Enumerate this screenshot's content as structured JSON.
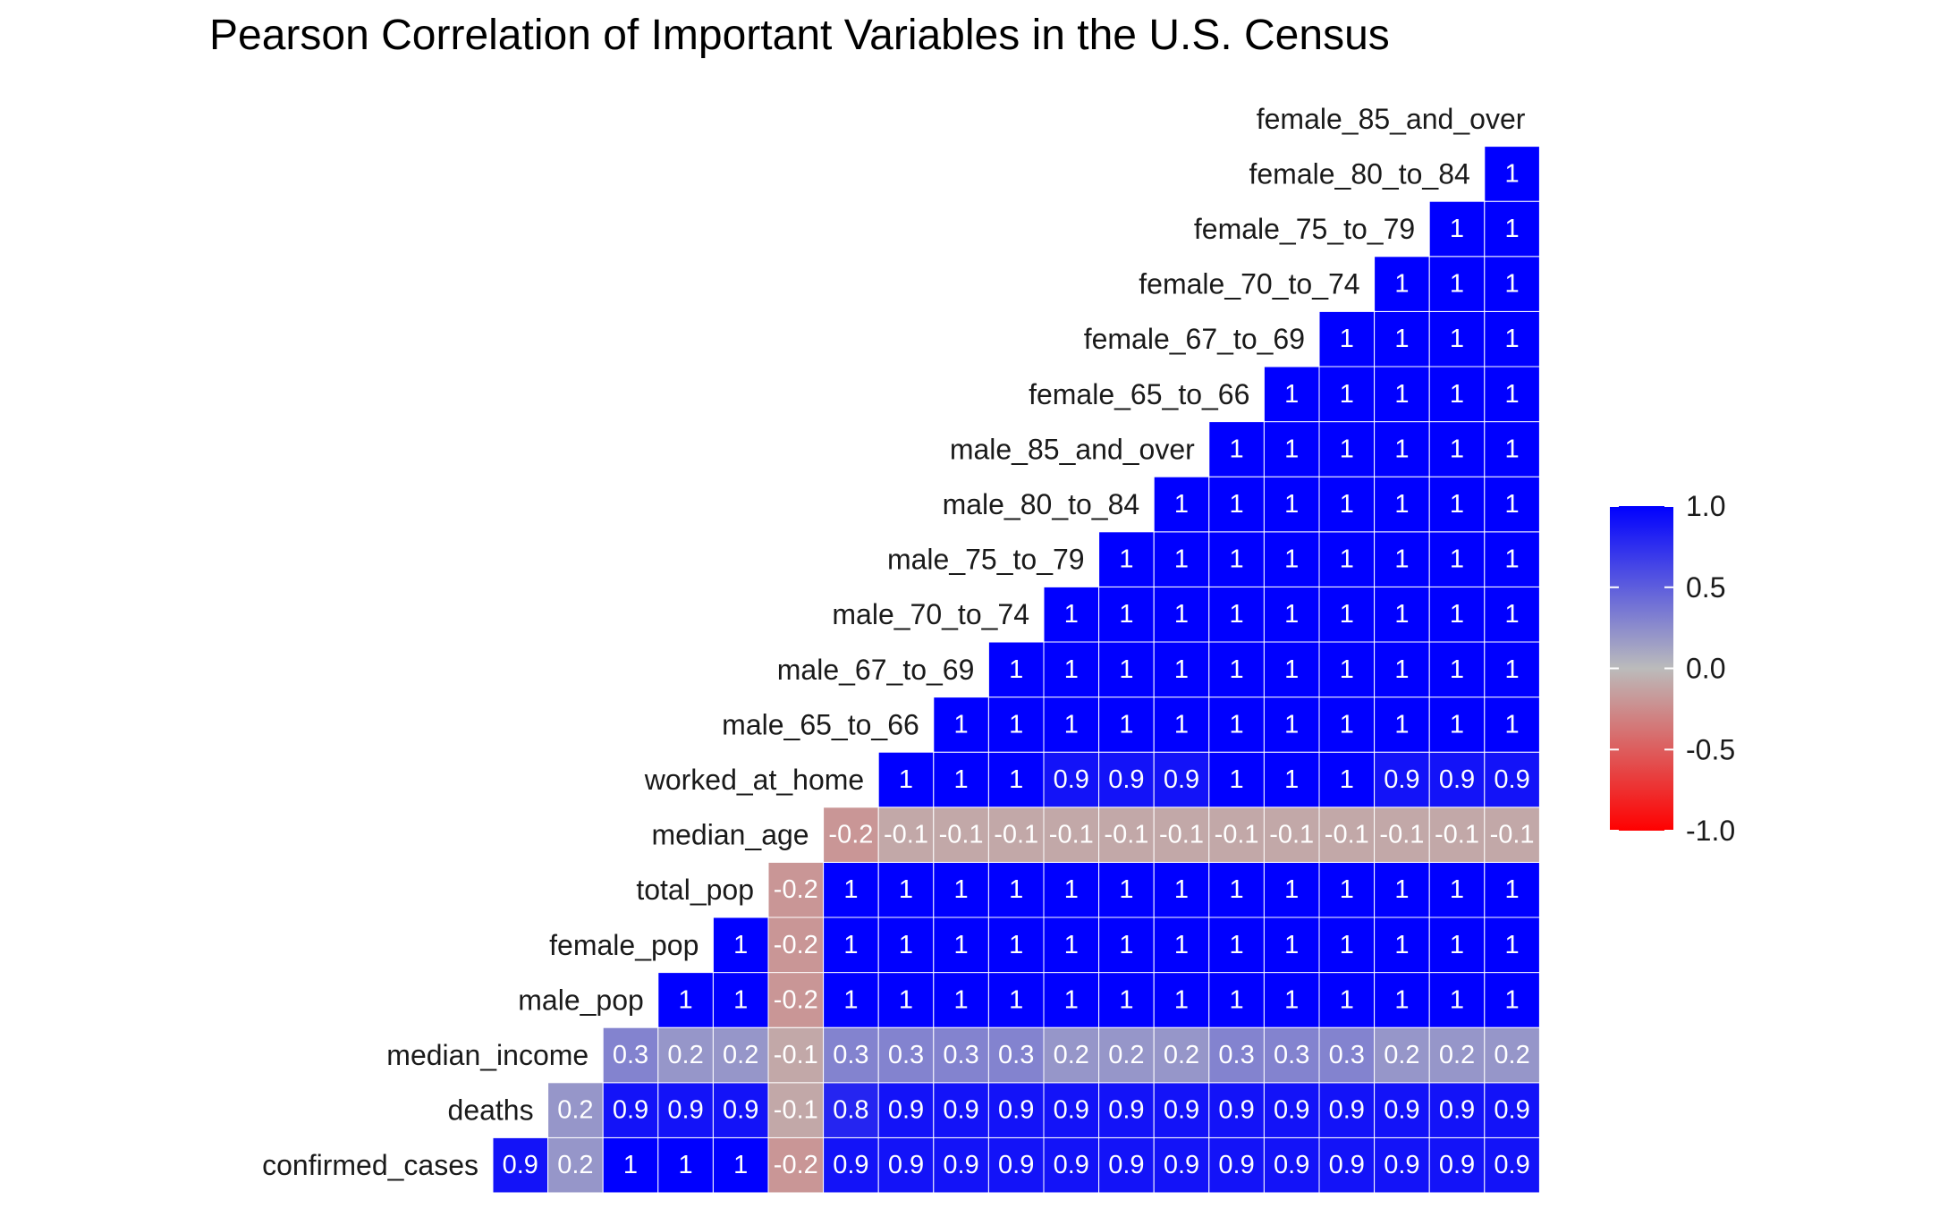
{
  "chart_data": {
    "type": "heatmap",
    "title": "Pearson Correlation of Important Variables in the U.S. Census",
    "variables": [
      "confirmed_cases",
      "deaths",
      "median_income",
      "male_pop",
      "female_pop",
      "total_pop",
      "median_age",
      "worked_at_home",
      "male_65_to_66",
      "male_67_to_69",
      "male_70_to_74",
      "male_75_to_79",
      "male_80_to_84",
      "male_85_and_over",
      "female_65_to_66",
      "female_67_to_69",
      "female_70_to_74",
      "female_75_to_79",
      "female_80_to_84",
      "female_85_and_over"
    ],
    "matrix": [
      [
        0.9,
        0.2,
        1,
        1,
        1,
        -0.2,
        0.9,
        0.9,
        0.9,
        0.9,
        0.9,
        0.9,
        0.9,
        0.9,
        0.9,
        0.9,
        0.9,
        0.9,
        0.9
      ],
      [
        0.2,
        0.9,
        0.9,
        0.9,
        -0.1,
        0.8,
        0.9,
        0.9,
        0.9,
        0.9,
        0.9,
        0.9,
        0.9,
        0.9,
        0.9,
        0.9,
        0.9,
        0.9
      ],
      [
        0.3,
        0.2,
        0.2,
        -0.1,
        0.3,
        0.3,
        0.3,
        0.3,
        0.2,
        0.2,
        0.2,
        0.3,
        0.3,
        0.3,
        0.2,
        0.2,
        0.2
      ],
      [
        1,
        1,
        -0.2,
        1,
        1,
        1,
        1,
        1,
        1,
        1,
        1,
        1,
        1,
        1,
        1,
        1
      ],
      [
        1,
        -0.2,
        1,
        1,
        1,
        1,
        1,
        1,
        1,
        1,
        1,
        1,
        1,
        1,
        1
      ],
      [
        -0.2,
        1,
        1,
        1,
        1,
        1,
        1,
        1,
        1,
        1,
        1,
        1,
        1,
        1
      ],
      [
        -0.2,
        -0.1,
        -0.1,
        -0.1,
        -0.1,
        -0.1,
        -0.1,
        -0.1,
        -0.1,
        -0.1,
        -0.1,
        -0.1,
        -0.1
      ],
      [
        1,
        1,
        1,
        0.9,
        0.9,
        0.9,
        1,
        1,
        1,
        0.9,
        0.9,
        0.9
      ],
      [
        1,
        1,
        1,
        1,
        1,
        1,
        1,
        1,
        1,
        1,
        1
      ],
      [
        1,
        1,
        1,
        1,
        1,
        1,
        1,
        1,
        1,
        1
      ],
      [
        1,
        1,
        1,
        1,
        1,
        1,
        1,
        1,
        1
      ],
      [
        1,
        1,
        1,
        1,
        1,
        1,
        1,
        1
      ],
      [
        1,
        1,
        1,
        1,
        1,
        1,
        1
      ],
      [
        1,
        1,
        1,
        1,
        1,
        1
      ],
      [
        1,
        1,
        1,
        1,
        1
      ],
      [
        1,
        1,
        1,
        1
      ],
      [
        1,
        1,
        1
      ],
      [
        1,
        1
      ],
      [
        1
      ]
    ],
    "color_scale": {
      "low": "#ff0000",
      "mid": "#bbbbbb",
      "high": "#0000ff",
      "limits": [
        -1.0,
        1.0
      ],
      "midpoint": 0.0
    },
    "legend": {
      "position": "right",
      "ticks": [
        "1.0",
        "0.5",
        "0.0",
        "-0.5",
        "-1.0"
      ],
      "tick_values": [
        1.0,
        0.5,
        0.0,
        -0.5,
        -1.0
      ]
    }
  }
}
